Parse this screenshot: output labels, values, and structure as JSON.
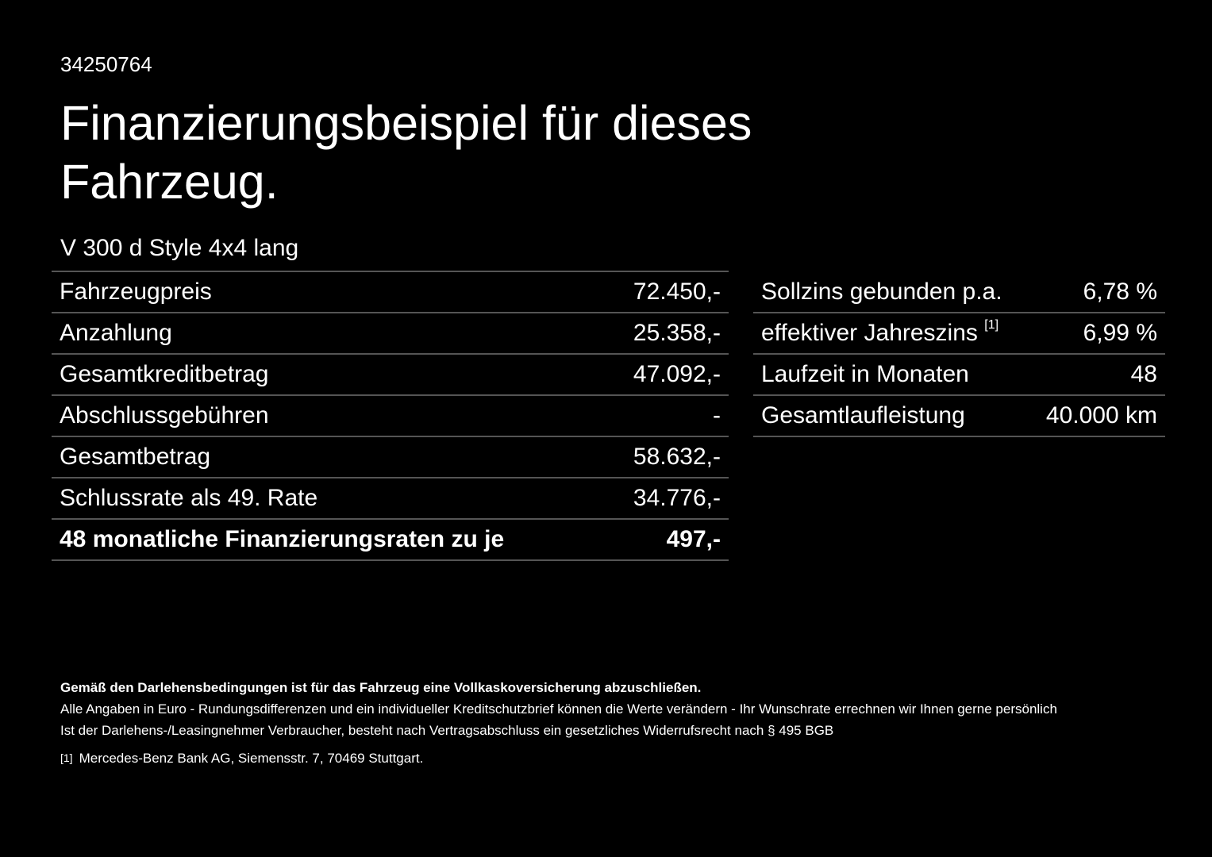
{
  "id": "34250764",
  "title": "Finanzierungsbeispiel für dieses Fahrzeug.",
  "model": "V 300 d Style 4x4 lang",
  "left_rows": [
    {
      "label": "Fahrzeugpreis",
      "value": "72.450,-"
    },
    {
      "label": "Anzahlung",
      "value": "25.358,-"
    },
    {
      "label": "Gesamtkreditbetrag",
      "value": "47.092,-"
    },
    {
      "label": "Abschlussgebühren",
      "value": "-"
    },
    {
      "label": "Gesamtbetrag",
      "value": "58.632,-"
    },
    {
      "label": "Schlussrate als 49. Rate",
      "value": "34.776,-"
    },
    {
      "label": "48 monatliche Finanzierungsraten zu je",
      "value": "497,-"
    }
  ],
  "right_rows": [
    {
      "label": "Sollzins gebunden p.a.",
      "value": "6,78 %"
    },
    {
      "label": "effektiver Jahreszins",
      "sup": "[1]",
      "value": "6,99 %"
    },
    {
      "label": "Laufzeit in Monaten",
      "value": "48"
    },
    {
      "label": "Gesamtlaufleistung",
      "value": "40.000 km"
    }
  ],
  "footer": {
    "bold": "Gemäß den Darlehensbedingungen ist für das Fahrzeug eine Vollkaskoversicherung abzuschließen.",
    "line1": "Alle Angaben in Euro - Rundungsdifferenzen und ein individueller Kreditschutzbrief können die Werte verändern - Ihr Wunschrate errechnen wir Ihnen gerne persönlich",
    "line2": "Ist der Darlehens-/Leasingnehmer Verbraucher, besteht nach Vertragsabschluss ein gesetzliches Widerrufsrecht nach § 495 BGB",
    "footnote_marker": "[1]",
    "footnote": "Mercedes-Benz Bank AG, Siemensstr. 7, 70469 Stuttgart."
  }
}
